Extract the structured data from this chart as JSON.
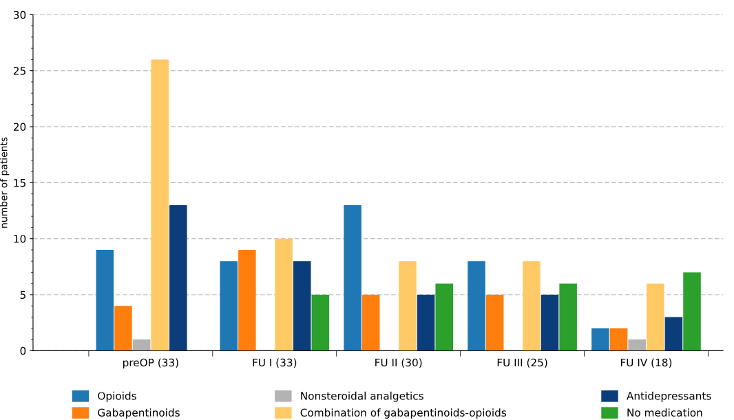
{
  "chart_data": {
    "type": "bar",
    "ylabel": "number of patients",
    "categories": [
      "preOP (33)",
      "FU I (33)",
      "FU II (30)",
      "FU III (25)",
      "FU IV (18)"
    ],
    "series": [
      {
        "name": "Opioids",
        "color": "#1f77b4",
        "values": [
          9,
          8,
          13,
          8,
          2
        ]
      },
      {
        "name": "Gabapentinoids",
        "color": "#ff7f0e",
        "values": [
          4,
          9,
          5,
          5,
          2
        ]
      },
      {
        "name": "Nonsteroidal analgetics",
        "color": "#b3b3b3",
        "values": [
          1,
          0,
          0,
          0,
          1
        ]
      },
      {
        "name": "Combination of gabapentinoids-opioids",
        "color": "#ffc966",
        "values": [
          26,
          10,
          8,
          8,
          6
        ]
      },
      {
        "name": "Antidepressants",
        "color": "#0b3d7a",
        "values": [
          13,
          8,
          5,
          5,
          3
        ]
      },
      {
        "name": "No medication",
        "color": "#2ca02c",
        "values": [
          0,
          5,
          6,
          6,
          7
        ]
      }
    ],
    "ylim": [
      0,
      30
    ],
    "yticks": [
      0,
      5,
      10,
      15,
      20,
      25,
      30
    ],
    "grid": "y",
    "legend": "bottom"
  }
}
